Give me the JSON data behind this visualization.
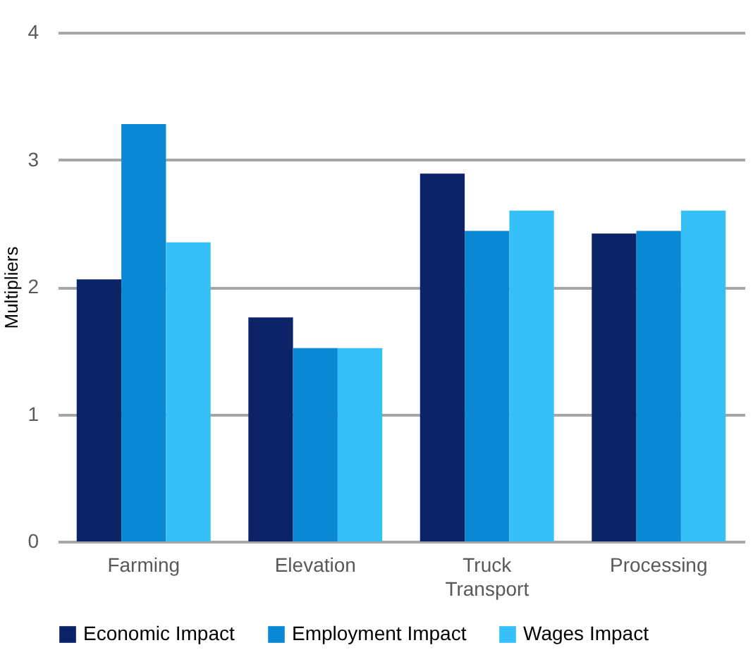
{
  "chart_data": {
    "type": "bar",
    "ylabel": "Multipliers",
    "categories": [
      "Farming",
      "Elevation",
      "Truck Transport",
      "Processing"
    ],
    "series": [
      {
        "name": "Economic Impact",
        "color": "#0c2368",
        "values": [
          2.06,
          1.76,
          2.89,
          2.42
        ]
      },
      {
        "name": "Employment Impact",
        "color": "#0a88d3",
        "values": [
          3.28,
          1.52,
          2.44,
          2.44
        ]
      },
      {
        "name": "Wages Impact",
        "color": "#36c0fa",
        "values": [
          2.35,
          1.52,
          2.6,
          2.6
        ]
      }
    ],
    "ylim": [
      0,
      4
    ],
    "yticks": [
      0,
      1,
      2,
      3,
      4
    ],
    "grid": "y",
    "legend": "bottom"
  }
}
